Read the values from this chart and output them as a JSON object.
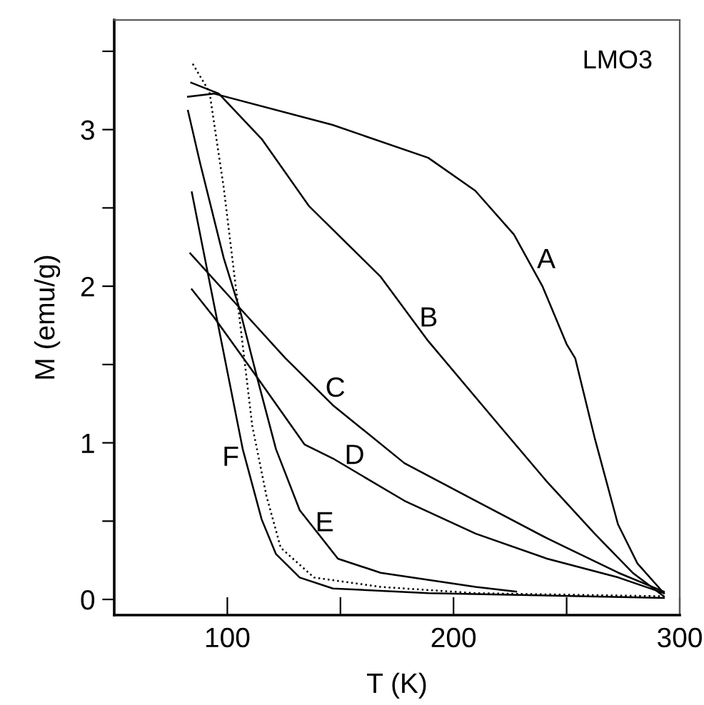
{
  "chart_data": {
    "type": "line",
    "xlabel": "T (K)",
    "ylabel": "M (emu/g)",
    "xlim": [
      50,
      300
    ],
    "ylim": [
      -0.1,
      3.7
    ],
    "xticks": [
      100,
      {
        "value": 150,
        "label": null
      },
      200,
      {
        "value": 250,
        "label": null
      },
      300
    ],
    "yticks": [
      0,
      {
        "value": 0.5,
        "label": null
      },
      1,
      {
        "value": 1.5,
        "label": null
      },
      2,
      {
        "value": 2.5,
        "label": null
      },
      3,
      {
        "value": 3.5,
        "label": null
      }
    ],
    "series": [
      {
        "name": "A",
        "color": "#000000",
        "x": [
          82.6,
          94,
          146.5,
          188.8,
          209.6,
          226.7,
          239.3,
          250,
          253.8,
          262.6,
          272.7,
          281.3,
          293
        ],
        "values": [
          3.21,
          3.23,
          3.03,
          2.82,
          2.61,
          2.33,
          2.0,
          1.63,
          1.54,
          1.02,
          0.48,
          0.23,
          0.04
        ]
      },
      {
        "name": "B",
        "color": "#000000",
        "x": [
          84,
          96.2,
          115.2,
          136.2,
          167.8,
          188.8,
          220.3,
          241.4,
          262.4,
          279.2,
          293
        ],
        "values": [
          3.3,
          3.23,
          2.94,
          2.51,
          2.06,
          1.65,
          1.11,
          0.75,
          0.42,
          0.17,
          0.02
        ]
      },
      {
        "name": "C",
        "color": "#000000",
        "x": [
          83.6,
          106.8,
          125.7,
          146.7,
          178.3,
          209.8,
          241.4,
          272.9,
          293
        ],
        "values": [
          2.21,
          1.84,
          1.54,
          1.24,
          0.87,
          0.63,
          0.39,
          0.17,
          0.05
        ]
      },
      {
        "name": "D",
        "color": "#000000",
        "x": [
          84.3,
          94.2,
          113.1,
          134.1,
          146.7,
          178.3,
          209.8,
          241.4,
          272.9,
          293
        ],
        "values": [
          1.98,
          1.8,
          1.42,
          0.99,
          0.9,
          0.63,
          0.42,
          0.26,
          0.14,
          0.04
        ]
      },
      {
        "name": "E",
        "color": "#000000",
        "x": [
          82.6,
          87.9,
          98.4,
          105.7,
          113.1,
          121.5,
          132,
          148.9,
          167.8,
          209.8,
          227.7
        ],
        "values": [
          3.12,
          2.79,
          2.18,
          1.84,
          1.42,
          0.96,
          0.57,
          0.26,
          0.17,
          0.08,
          0.05
        ]
      },
      {
        "name": "F",
        "color": "#000000",
        "x": [
          84.3,
          92.1,
          100.5,
          106.8,
          115.2,
          121.5,
          132,
          146.7,
          188.8,
          293
        ],
        "values": [
          2.6,
          2.03,
          1.42,
          0.96,
          0.51,
          0.29,
          0.14,
          0.07,
          0.04,
          0.01
        ]
      },
      {
        "color": "#000000",
        "line_style": "dotted",
        "x": [
          84.7,
          92.1,
          98.4,
          104.7,
          111,
          117.3,
          123.6,
          138.3,
          167.8,
          209.6,
          293
        ],
        "values": [
          3.42,
          3.24,
          2.63,
          1.88,
          1.11,
          0.66,
          0.33,
          0.14,
          0.08,
          0.04,
          0.02
        ]
      }
    ],
    "annotations": [
      "LMO3"
    ]
  }
}
